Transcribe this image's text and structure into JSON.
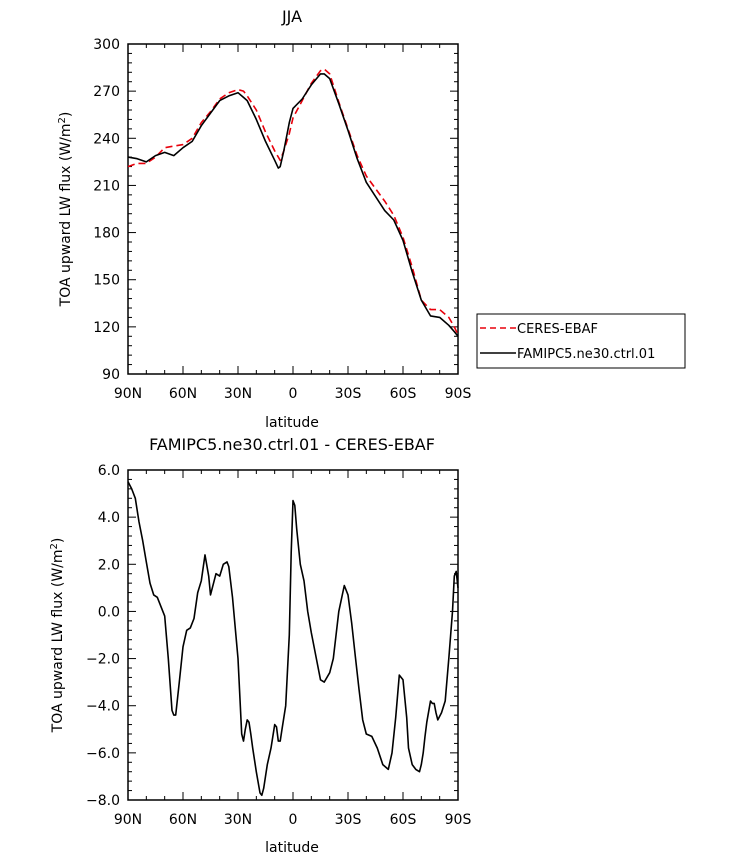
{
  "chart_data": [
    {
      "type": "line",
      "title": "JJA",
      "xlabel": "latitude",
      "ylabel_main": "TOA upward LW flux (W/m",
      "ylabel_sup": "2",
      "ylabel_close": ")",
      "ylim": [
        90,
        300
      ],
      "xlim": [
        90,
        -90
      ],
      "x_ticks": [
        90,
        60,
        30,
        0,
        -30,
        -60,
        -90
      ],
      "x_tick_labels": [
        "90N",
        "60N",
        "30N",
        "0",
        "30S",
        "60S",
        "90S"
      ],
      "y_ticks": [
        90,
        120,
        150,
        180,
        210,
        240,
        270,
        300
      ],
      "y_tick_labels": [
        "90",
        "120",
        "150",
        "180",
        "210",
        "240",
        "270",
        "300"
      ],
      "legend": {
        "placement": "right",
        "entries": [
          "CERES-EBAF",
          "FAMIPC5.ne30.ctrl.01"
        ]
      },
      "series": [
        {
          "name": "CERES-EBAF",
          "color": "#e8000b",
          "dash": true,
          "x": [
            90,
            85,
            80,
            75,
            70,
            65,
            60,
            55,
            50,
            45,
            40,
            35,
            30,
            27,
            25,
            20,
            15,
            10,
            7,
            5,
            2,
            0,
            -5,
            -10,
            -15,
            -17,
            -20,
            -25,
            -30,
            -35,
            -40,
            -45,
            -50,
            -55,
            -60,
            -65,
            -70,
            -75,
            -80,
            -85,
            -88,
            -90
          ],
          "y": [
            222,
            224,
            224,
            228,
            234,
            235,
            236,
            240,
            250,
            257,
            265,
            269,
            271,
            270,
            267,
            258,
            244,
            232,
            226,
            232,
            243,
            253,
            264,
            275,
            283,
            284,
            281,
            263,
            246,
            229,
            216,
            208,
            200,
            191,
            177,
            158,
            137,
            131,
            131,
            126,
            120,
            115
          ],
          "values": [
            222,
            224,
            224,
            228,
            234,
            235,
            236,
            240,
            250,
            257,
            265,
            269,
            271,
            270,
            267,
            258,
            244,
            232,
            226,
            232,
            243,
            253,
            264,
            275,
            283,
            284,
            281,
            263,
            246,
            229,
            216,
            208,
            200,
            191,
            177,
            158,
            137,
            131,
            131,
            126,
            120,
            115
          ]
        },
        {
          "name": "FAMIPC5.ne30.ctrl.01",
          "color": "#000000",
          "dash": false,
          "x": [
            90,
            85,
            80,
            75,
            70,
            65,
            60,
            55,
            50,
            45,
            40,
            35,
            30,
            27,
            25,
            20,
            15,
            10,
            8,
            7,
            5,
            2,
            0,
            -5,
            -10,
            -15,
            -17,
            -20,
            -25,
            -30,
            -35,
            -40,
            -45,
            -50,
            -55,
            -60,
            -65,
            -70,
            -75,
            -80,
            -85,
            -88,
            -90
          ],
          "y": [
            228,
            227,
            225,
            229,
            231,
            229,
            234,
            238,
            248,
            256,
            264,
            267,
            269,
            266,
            264,
            252,
            238,
            226,
            221,
            222,
            232,
            250,
            259,
            265,
            274,
            281,
            281,
            278,
            262,
            245,
            227,
            212,
            203,
            194,
            188,
            175,
            155,
            137,
            127,
            126,
            121,
            117,
            114
          ],
          "values": [
            228,
            227,
            225,
            229,
            231,
            229,
            234,
            238,
            248,
            256,
            264,
            267,
            269,
            266,
            264,
            252,
            238,
            226,
            221,
            222,
            232,
            250,
            259,
            265,
            274,
            281,
            281,
            278,
            262,
            245,
            227,
            212,
            203,
            194,
            188,
            175,
            155,
            137,
            127,
            126,
            121,
            117,
            114
          ]
        }
      ]
    },
    {
      "type": "line",
      "title": "FAMIPC5.ne30.ctrl.01 - CERES-EBAF",
      "xlabel": "latitude",
      "ylabel_main": "TOA upward LW flux (W/m",
      "ylabel_sup": "2",
      "ylabel_close": ")",
      "ylim": [
        -8,
        6
      ],
      "xlim": [
        90,
        -90
      ],
      "x_ticks": [
        90,
        60,
        30,
        0,
        -30,
        -60,
        -90
      ],
      "x_tick_labels": [
        "90N",
        "60N",
        "30N",
        "0",
        "30S",
        "60S",
        "90S"
      ],
      "y_ticks": [
        -8,
        -6,
        -4,
        -2,
        0,
        2,
        4,
        6
      ],
      "y_tick_labels": [
        "−8.0",
        "−6.0",
        "−4.0",
        "−2.0",
        "0.0",
        "2.0",
        "4.0",
        "6.0"
      ],
      "series": [
        {
          "color": "#000000",
          "dash": false,
          "x": [
            90,
            88,
            86,
            84,
            82,
            80,
            78,
            76,
            74,
            72,
            70,
            68,
            66,
            65,
            64,
            62,
            60,
            58,
            56,
            54,
            52,
            50,
            48,
            46,
            45,
            44,
            42,
            40,
            38,
            36,
            35,
            33,
            30,
            28,
            27,
            26,
            25,
            24,
            23,
            22,
            20,
            18,
            17,
            16,
            15,
            14,
            12,
            10,
            9,
            8,
            7,
            6,
            4,
            2,
            1,
            0,
            -1,
            -2,
            -4,
            -6,
            -8,
            -10,
            -13,
            -15,
            -17,
            -20,
            -22,
            -25,
            -28,
            -30,
            -32,
            -34,
            -36,
            -38,
            -40,
            -43,
            -46,
            -49,
            -52,
            -54,
            -56,
            -58,
            -60,
            -62,
            -63,
            -65,
            -67,
            -69,
            -70,
            -71,
            -72,
            -73,
            -75,
            -76,
            -77,
            -78,
            -79,
            -81,
            -83,
            -85,
            -87,
            -88,
            -89,
            -90
          ],
          "y": [
            5.5,
            5.2,
            4.8,
            3.8,
            3.0,
            2.1,
            1.2,
            0.7,
            0.6,
            0.2,
            -0.2,
            -2.0,
            -4.2,
            -4.4,
            -4.4,
            -3.0,
            -1.5,
            -0.8,
            -0.7,
            -0.3,
            0.8,
            1.3,
            2.4,
            1.5,
            0.7,
            1.0,
            1.6,
            1.5,
            2.0,
            2.1,
            1.9,
            0.6,
            -2.0,
            -5.2,
            -5.5,
            -5.0,
            -4.6,
            -4.7,
            -5.2,
            -5.8,
            -6.8,
            -7.7,
            -7.8,
            -7.5,
            -7.0,
            -6.5,
            -5.8,
            -4.8,
            -4.9,
            -5.5,
            -5.5,
            -5.0,
            -4.0,
            -1.0,
            2.5,
            4.7,
            4.5,
            3.5,
            2.0,
            1.3,
            0.0,
            -0.9,
            -2.1,
            -2.9,
            -3.0,
            -2.6,
            -2.0,
            0.0,
            1.1,
            0.7,
            -0.5,
            -1.9,
            -3.3,
            -4.6,
            -5.2,
            -5.3,
            -5.8,
            -6.5,
            -6.7,
            -6.0,
            -4.5,
            -2.7,
            -2.9,
            -4.5,
            -5.8,
            -6.5,
            -6.7,
            -6.8,
            -6.5,
            -6.0,
            -5.3,
            -4.7,
            -3.8,
            -3.9,
            -3.9,
            -4.3,
            -4.6,
            -4.3,
            -3.8,
            -2.0,
            0.0,
            1.5,
            1.7,
            1.0
          ],
          "values": [
            5.5,
            5.2,
            4.8,
            3.8,
            3.0,
            2.1,
            1.2,
            0.7,
            0.6,
            0.2,
            -0.2,
            -2.0,
            -4.2,
            -4.4,
            -4.4,
            -3.0,
            -1.5,
            -0.8,
            -0.7,
            -0.3,
            0.8,
            1.3,
            2.4,
            1.5,
            0.7,
            1.0,
            1.6,
            1.5,
            2.0,
            2.1,
            1.9,
            0.6,
            -2.0,
            -5.2,
            -5.5,
            -5.0,
            -4.6,
            -4.7,
            -5.2,
            -5.8,
            -6.8,
            -7.7,
            -7.8,
            -7.5,
            -7.0,
            -6.5,
            -5.8,
            -4.8,
            -4.9,
            -5.5,
            -5.5,
            -5.0,
            -4.0,
            -1.0,
            2.5,
            4.7,
            4.5,
            3.5,
            2.0,
            1.3,
            0.0,
            -0.9,
            -2.1,
            -2.9,
            -3.0,
            -2.6,
            -2.0,
            0.0,
            1.1,
            0.7,
            -0.5,
            -1.9,
            -3.3,
            -4.6,
            -5.2,
            -5.3,
            -5.8,
            -6.5,
            -6.7,
            -6.0,
            -4.5,
            -2.7,
            -2.9,
            -4.5,
            -5.8,
            -6.5,
            -6.7,
            -6.8,
            -6.5,
            -6.0,
            -5.3,
            -4.7,
            -3.8,
            -3.9,
            -3.9,
            -4.3,
            -4.6,
            -4.3,
            -3.8,
            -2.0,
            0.0,
            1.5,
            1.7,
            1.0
          ]
        }
      ]
    }
  ]
}
